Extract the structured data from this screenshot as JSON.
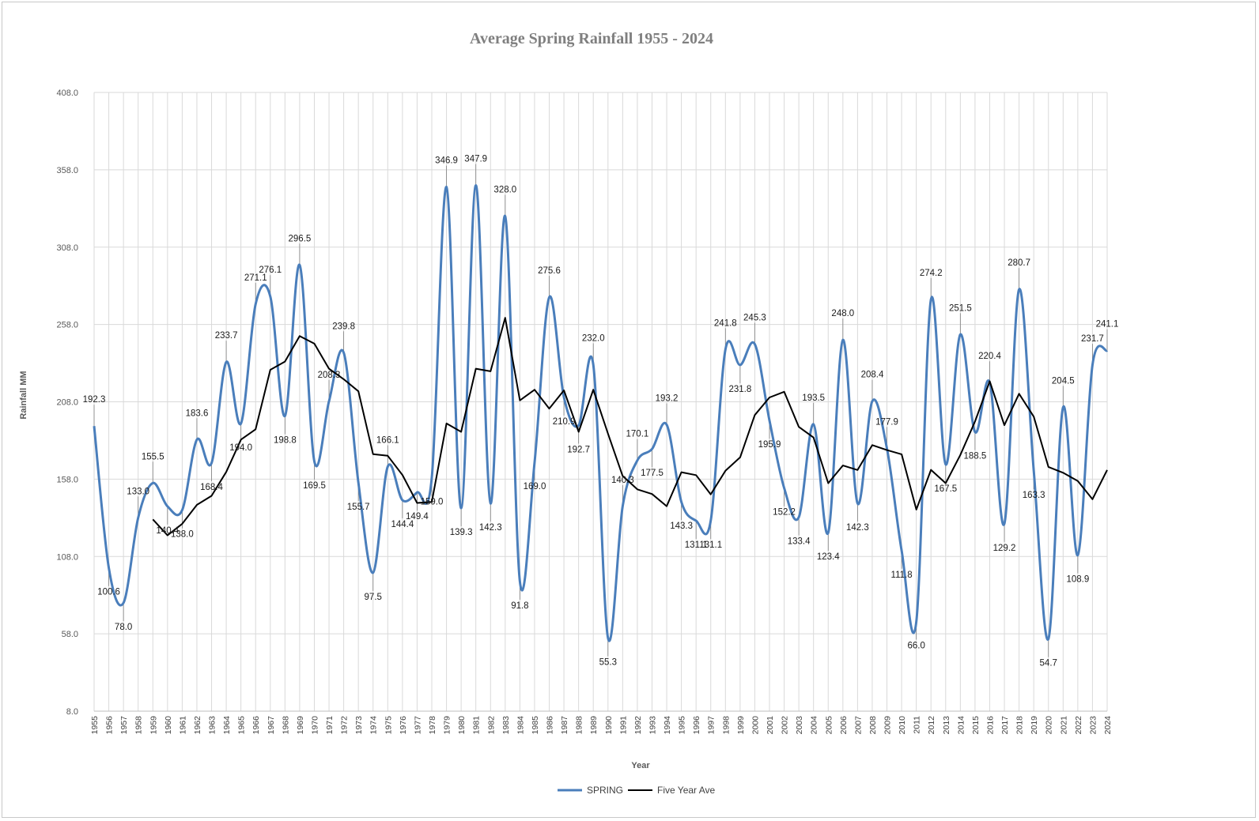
{
  "chart_data": {
    "type": "line",
    "title": "Average Spring Rainfall 1955 - 2024",
    "xlabel": "Year",
    "ylabel": "Rainfall MM",
    "ylim": [
      8.0,
      408.0
    ],
    "yticks": [
      "8.0",
      "58.0",
      "108.0",
      "158.0",
      "208.0",
      "258.0",
      "308.0",
      "358.0",
      "408.0"
    ],
    "grid": true,
    "legend_position": "bottom",
    "categories": [
      "1955",
      "1956",
      "1957",
      "1958",
      "1959",
      "1960",
      "1961",
      "1962",
      "1963",
      "1964",
      "1965",
      "1966",
      "1967",
      "1968",
      "1969",
      "1970",
      "1971",
      "1972",
      "1973",
      "1974",
      "1975",
      "1976",
      "1977",
      "1978",
      "1979",
      "1980",
      "1981",
      "1982",
      "1983",
      "1984",
      "1985",
      "1986",
      "1987",
      "1988",
      "1989",
      "1990",
      "1991",
      "1992",
      "1993",
      "1994",
      "1995",
      "1996",
      "1997",
      "1998",
      "1999",
      "2000",
      "2001",
      "2002",
      "2003",
      "2004",
      "2005",
      "2006",
      "2007",
      "2008",
      "2009",
      "2010",
      "2011",
      "2012",
      "2013",
      "2014",
      "2015",
      "2016",
      "2017",
      "2018",
      "2019",
      "2020",
      "2021",
      "2022",
      "2023",
      "2024"
    ],
    "series": [
      {
        "name": "SPRING",
        "color": "#4a7ebb",
        "values": [
          192.3,
          100.6,
          78.0,
          133.0,
          155.5,
          140.4,
          138.0,
          183.6,
          168.4,
          233.7,
          194.0,
          271.1,
          276.1,
          198.8,
          296.5,
          169.5,
          208.3,
          239.8,
          155.7,
          97.5,
          166.1,
          144.4,
          149.4,
          159.0,
          346.9,
          139.3,
          347.9,
          142.3,
          328.0,
          91.8,
          169.0,
          275.6,
          210.9,
          192.7,
          232.0,
          55.3,
          140.3,
          170.1,
          177.5,
          193.2,
          143.3,
          131.1,
          131.1,
          241.8,
          231.8,
          245.3,
          195.9,
          152.2,
          133.4,
          193.5,
          123.4,
          248.0,
          142.3,
          208.4,
          177.9,
          111.8,
          66.0,
          274.2,
          167.5,
          251.5,
          188.5,
          220.4,
          129.2,
          280.7,
          163.3,
          54.7,
          204.5,
          108.9,
          231.7,
          241.1
        ]
      },
      {
        "name": "Five Year Ave",
        "color": "#000000",
        "values": [
          null,
          null,
          null,
          null,
          132.0,
          121.7,
          129.1,
          141.4,
          147.2,
          162.7,
          183.6,
          190.2,
          228.7,
          234.0,
          250.5,
          245.6,
          229.4,
          222.6,
          214.8,
          174.2,
          173.1,
          160.7,
          142.6,
          143.3,
          194.0,
          188.6,
          229.4,
          227.7,
          262.3,
          208.9,
          215.8,
          203.6,
          215.4,
          188.6,
          215.8,
          187.4,
          160.1,
          151.4,
          148.4,
          140.5,
          162.5,
          160.6,
          148.2,
          163.4,
          172.1,
          199.4,
          210.8,
          214.5,
          191.8,
          184.9,
          155.4,
          166.8,
          163.9,
          180.0,
          176.8,
          174.1,
          138.3,
          164.0,
          155.4,
          173.6,
          195.3,
          221.3,
          192.9,
          213.2,
          198.4,
          165.9,
          162.1,
          156.8,
          145.0,
          163.9
        ]
      }
    ],
    "data_labels": [
      "192.3",
      "100.6",
      "78.0",
      "133.0",
      "155.5",
      "140.4",
      "138.0",
      "183.6",
      "168.4",
      "233.7",
      "194.0",
      "271.1",
      "276.1",
      "198.8",
      "296.5",
      "169.5",
      "208.3",
      "239.8",
      "155.7",
      "97.5",
      "166.1",
      "144.4",
      "149.4",
      "159.0",
      "346.9",
      "139.3",
      "347.9",
      "142.3",
      "328.0",
      "91.8",
      "169.0",
      "275.6",
      "210.9",
      "192.7",
      "232.0",
      "55.3",
      "140.3",
      "170.1",
      "177.5",
      "193.2",
      "143.3",
      "131.1",
      "131.1",
      "241.8",
      "231.8",
      "245.3",
      "195.9",
      "152.2",
      "133.4",
      "193.5",
      "123.4",
      "248.0",
      "142.3",
      "208.4",
      "177.9",
      "111.8",
      "66.0",
      "274.2",
      "167.5",
      "251.5",
      "188.5",
      "220.4",
      "129.2",
      "280.7",
      "163.3",
      "54.7",
      "204.5",
      "108.9",
      "231.7",
      "241.1"
    ]
  }
}
